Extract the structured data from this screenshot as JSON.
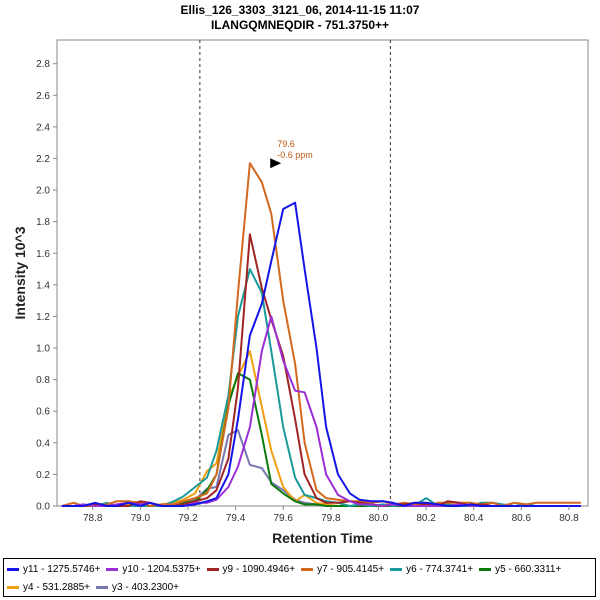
{
  "chart_data": {
    "type": "line",
    "title": "Ellis_126_3303_3121_06, 2014-11-15 11:07",
    "subtitle": "ILANGQMNEQDIR - 751.3750++",
    "xlabel": "Retention Time",
    "ylabel": "Intensity 10^3",
    "xlim": [
      78.65,
      80.88
    ],
    "ylim": [
      0,
      2.95
    ],
    "x_ticks": [
      "78.8",
      "79.0",
      "79.2",
      "79.4",
      "79.6",
      "79.8",
      "80.0",
      "80.2",
      "80.4",
      "80.6",
      "80.8"
    ],
    "y_ticks": [
      "0.0",
      "0.2",
      "0.4",
      "0.6",
      "0.8",
      "1.0",
      "1.2",
      "1.4",
      "1.6",
      "1.8",
      "2.0",
      "2.2",
      "2.4",
      "2.6",
      "2.8"
    ],
    "vlines": [
      79.25,
      80.05
    ],
    "annotation": {
      "x": 79.6,
      "y": 2.17,
      "line1": "79.6",
      "line2": "-0.6 ppm",
      "color": "#c0580f"
    },
    "x": [
      78.67,
      78.72,
      78.76,
      78.81,
      78.86,
      78.9,
      78.95,
      79.0,
      79.04,
      79.09,
      79.14,
      79.18,
      79.23,
      79.28,
      79.32,
      79.37,
      79.41,
      79.46,
      79.51,
      79.55,
      79.6,
      79.65,
      79.69,
      79.74,
      79.78,
      79.83,
      79.88,
      79.92,
      79.97,
      80.02,
      80.06,
      80.11,
      80.15,
      80.2,
      80.25,
      80.29,
      80.34,
      80.39,
      80.43,
      80.48,
      80.52,
      80.57,
      80.62,
      80.66,
      80.71,
      80.76,
      80.8,
      80.85
    ],
    "series": [
      {
        "name": "y11 - 1275.5746+",
        "color": "#1414e6",
        "values": [
          0.0,
          0.0,
          0.0,
          0.02,
          0.0,
          0.0,
          0.02,
          0.0,
          0.02,
          0.0,
          0.0,
          0.0,
          0.01,
          0.03,
          0.05,
          0.2,
          0.55,
          1.08,
          1.28,
          1.55,
          1.88,
          1.92,
          1.5,
          1.0,
          0.5,
          0.2,
          0.08,
          0.04,
          0.03,
          0.03,
          0.02,
          0.0,
          0.02,
          0.02,
          0.01,
          0.0,
          0.0,
          0.01,
          0.0,
          0.0,
          0.0,
          0.0,
          0.0,
          0.0,
          0.0,
          0.0,
          0.0,
          0.0
        ]
      },
      {
        "name": "y10 - 1204.5375+",
        "color": "#9a2fd6",
        "values": [
          0.0,
          0.0,
          0.01,
          0.0,
          0.0,
          0.01,
          0.02,
          0.01,
          0.02,
          0.0,
          0.0,
          0.0,
          0.02,
          0.02,
          0.04,
          0.12,
          0.25,
          0.5,
          0.98,
          1.2,
          0.92,
          0.73,
          0.72,
          0.5,
          0.2,
          0.07,
          0.03,
          0.01,
          0.01,
          0.0,
          0.01,
          0.0,
          0.0,
          0.0,
          0.0,
          0.0,
          0.01,
          0.0,
          0.0,
          0.0,
          0.0,
          0.0,
          0.0,
          0.0,
          0.0,
          0.0,
          0.0,
          0.0
        ]
      },
      {
        "name": "y9 - 1090.4946+",
        "color": "#a02424",
        "values": [
          0.0,
          0.0,
          0.0,
          0.01,
          0.0,
          0.0,
          0.0,
          0.03,
          0.02,
          0.0,
          0.0,
          0.01,
          0.03,
          0.05,
          0.1,
          0.3,
          0.75,
          1.72,
          1.38,
          1.18,
          0.95,
          0.55,
          0.2,
          0.05,
          0.02,
          0.02,
          0.03,
          0.02,
          0.01,
          0.0,
          0.01,
          0.01,
          0.02,
          0.01,
          0.0,
          0.03,
          0.02,
          0.0,
          0.01,
          0.0,
          0.0,
          0.0,
          0.0,
          0.0,
          0.0,
          0.0,
          0.0,
          0.0
        ]
      },
      {
        "name": "y7 - 905.4145+",
        "color": "#d2691e",
        "values": [
          0.0,
          0.02,
          0.0,
          0.0,
          0.01,
          0.03,
          0.03,
          0.02,
          0.0,
          0.01,
          0.01,
          0.03,
          0.05,
          0.08,
          0.2,
          0.62,
          1.35,
          2.17,
          2.05,
          1.85,
          1.3,
          0.9,
          0.4,
          0.1,
          0.05,
          0.04,
          0.03,
          0.03,
          0.02,
          0.03,
          0.01,
          0.02,
          0.01,
          0.0,
          0.02,
          0.02,
          0.02,
          0.02,
          0.01,
          0.02,
          0.0,
          0.02,
          0.01,
          0.02,
          0.02,
          0.02,
          0.02,
          0.02
        ]
      },
      {
        "name": "y6 - 774.3741+",
        "color": "#1a9a9a",
        "values": [
          0.0,
          0.0,
          0.0,
          0.0,
          0.02,
          0.0,
          0.0,
          0.0,
          0.0,
          0.0,
          0.03,
          0.06,
          0.12,
          0.18,
          0.35,
          0.7,
          1.2,
          1.5,
          1.35,
          0.98,
          0.5,
          0.18,
          0.07,
          0.05,
          0.03,
          0.02,
          0.0,
          0.01,
          0.0,
          0.01,
          0.0,
          0.01,
          0.0,
          0.05,
          0.0,
          0.01,
          0.0,
          0.0,
          0.02,
          0.02,
          0.01,
          0.0,
          0.01,
          0.0,
          0.0,
          0.0,
          0.0,
          0.0
        ]
      },
      {
        "name": "y5 - 660.3311+",
        "color": "#0a7a0a",
        "values": [
          0.0,
          0.0,
          0.0,
          0.01,
          0.0,
          0.0,
          0.0,
          0.0,
          0.0,
          0.0,
          0.01,
          0.02,
          0.03,
          0.1,
          0.2,
          0.64,
          0.84,
          0.8,
          0.45,
          0.14,
          0.08,
          0.03,
          0.01,
          0.01,
          0.0,
          0.0,
          0.0,
          0.0,
          0.0,
          0.0,
          0.0,
          0.0,
          0.0,
          0.0,
          0.0,
          0.0,
          0.0,
          0.0,
          0.0,
          0.0,
          0.0,
          0.0,
          0.0,
          0.0,
          0.0,
          0.0,
          0.0,
          0.0
        ]
      },
      {
        "name": "y4 - 531.2885+",
        "color": "#f0a010",
        "values": [
          0.0,
          0.0,
          0.0,
          0.0,
          0.0,
          0.0,
          0.01,
          0.0,
          0.0,
          0.01,
          0.02,
          0.04,
          0.08,
          0.22,
          0.27,
          0.68,
          0.82,
          0.98,
          0.63,
          0.35,
          0.12,
          0.03,
          0.07,
          0.02,
          0.01,
          0.0,
          0.0,
          0.0,
          0.0,
          0.0,
          0.0,
          0.0,
          0.0,
          0.0,
          0.0,
          0.0,
          0.0,
          0.0,
          0.0,
          0.0,
          0.0,
          0.0,
          0.0,
          0.0,
          0.0,
          0.0,
          0.0,
          0.0
        ]
      },
      {
        "name": "y3 - 403.2300+",
        "color": "#7878b0",
        "values": [
          0.0,
          0.0,
          0.0,
          0.0,
          0.0,
          0.0,
          0.02,
          0.01,
          0.0,
          0.0,
          0.0,
          0.02,
          0.04,
          0.11,
          0.12,
          0.45,
          0.48,
          0.26,
          0.24,
          0.15,
          0.1,
          0.04,
          0.02,
          0.01,
          0.0,
          0.0,
          0.0,
          0.0,
          0.0,
          0.0,
          0.0,
          0.0,
          0.0,
          0.0,
          0.0,
          0.0,
          0.0,
          0.0,
          0.0,
          0.0,
          0.0,
          0.0,
          0.0,
          0.0,
          0.0,
          0.0,
          0.0,
          0.0
        ]
      }
    ]
  }
}
